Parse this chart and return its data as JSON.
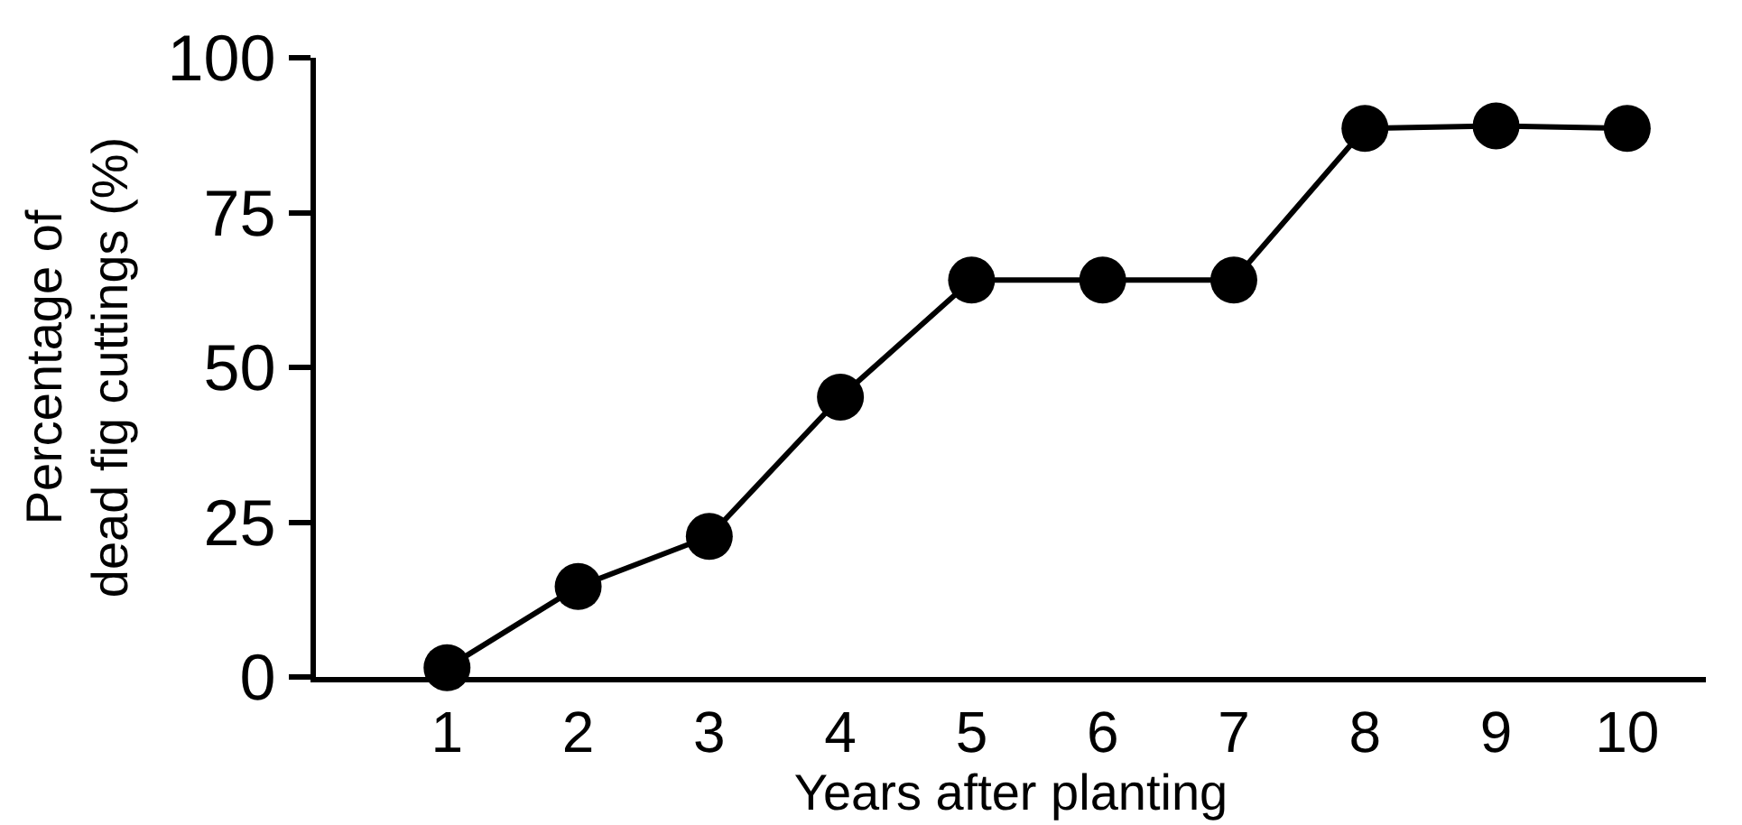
{
  "chart_data": {
    "type": "line",
    "xlabel": "Years after planting",
    "ylabel": "Percentage of\ndead fig cuttings (%)",
    "x": [
      1,
      2,
      3,
      4,
      5,
      6,
      7,
      8,
      9,
      10
    ],
    "series": [
      {
        "color": "#000000",
        "values": [
          1.5,
          14.6,
          22.7,
          45.2,
          64.1,
          64.1,
          64.1,
          88.6,
          89,
          88.6
        ]
      }
    ],
    "xlim": [
      0,
      10.6
    ],
    "xticks": [
      1,
      2,
      3,
      4,
      5,
      6,
      7,
      8,
      9,
      10
    ],
    "ylim": [
      0,
      100
    ],
    "yticks": [
      0,
      25,
      50,
      75,
      100
    ],
    "marker": "circle",
    "line_style": "solid"
  }
}
